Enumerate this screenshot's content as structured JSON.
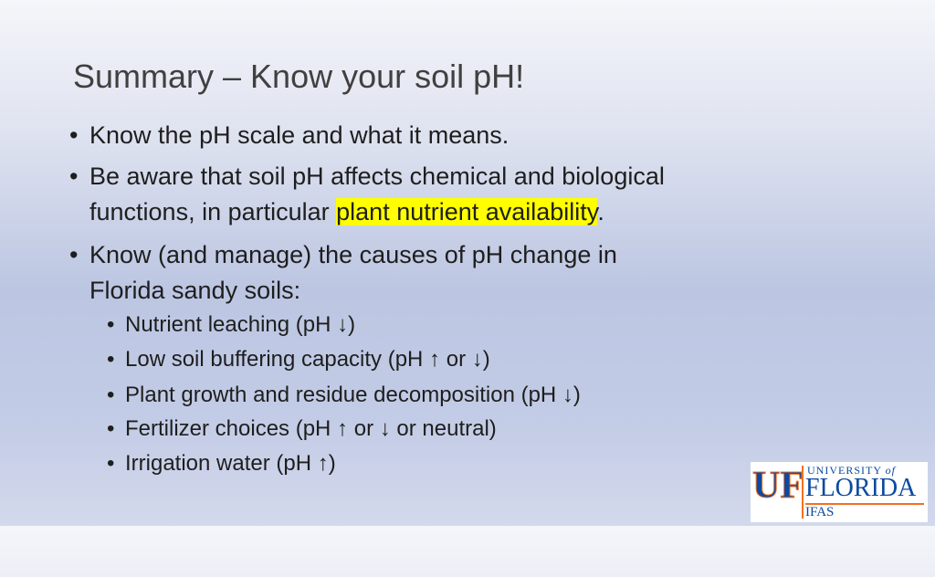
{
  "title": "Summary – Know your soil pH!",
  "bullets": [
    {
      "lines": [
        [
          "Know the pH scale and what it means."
        ]
      ]
    },
    {
      "lines": [
        [
          "Be aware that soil pH affects chemical and biological"
        ],
        [
          "functions, in particular ",
          "plant nutrient availability",
          "."
        ]
      ]
    },
    {
      "lines": [
        [
          "Know (and manage) the causes of pH change in"
        ],
        [
          "Florida sandy soils:"
        ]
      ],
      "sub_bullets": [
        "Nutrient leaching (pH ↓)",
        "Low soil buffering capacity (pH ↑ or ↓)",
        "Plant growth and residue decomposition (pH ↓)",
        "Fertilizer choices (pH ↑ or ↓ or neutral)",
        "Irrigation water (pH ↑)"
      ]
    }
  ],
  "logo": {
    "mark": "UF",
    "university": "UNIVERSITY",
    "of": "of",
    "name": "FLORIDA",
    "unit": "IFAS"
  }
}
